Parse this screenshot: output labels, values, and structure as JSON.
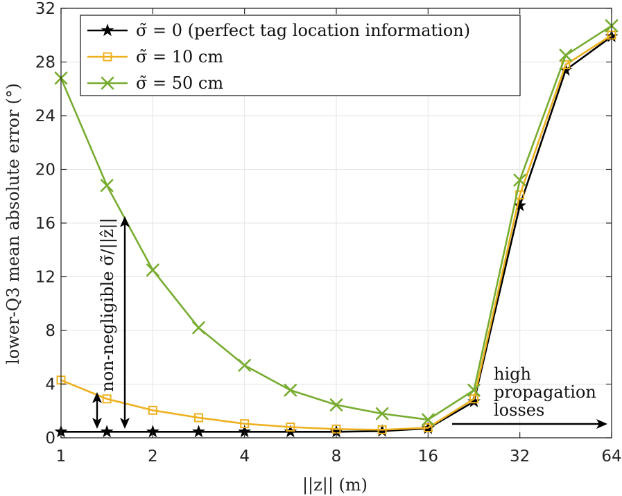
{
  "chart_data": {
    "type": "line",
    "x_scale": "log2",
    "x": [
      1,
      1.414,
      2,
      2.828,
      4,
      5.657,
      8,
      11.31,
      16,
      22.63,
      32,
      45.25,
      64
    ],
    "xticks": [
      1,
      2,
      4,
      8,
      16,
      32,
      64
    ],
    "xtick_labels": [
      "1",
      "2",
      "4",
      "8",
      "16",
      "32",
      "64"
    ],
    "yticks": [
      0,
      4,
      8,
      12,
      16,
      20,
      24,
      28,
      32
    ],
    "ytick_labels": [
      "0",
      "4",
      "8",
      "12",
      "16",
      "20",
      "24",
      "28",
      "32"
    ],
    "xlim": [
      1,
      64
    ],
    "ylim": [
      0,
      32
    ],
    "grid": true,
    "legend_position": "top-left",
    "xlabel": "||z|| (m)",
    "ylabel": "lower-Q3 mean absolute error (°)",
    "series": [
      {
        "name": "σ̃ = 0 (perfect tag location information)",
        "color": "#000000",
        "marker": "star",
        "values": [
          0.45,
          0.45,
          0.45,
          0.45,
          0.45,
          0.45,
          0.45,
          0.5,
          0.7,
          2.7,
          17.3,
          27.4,
          29.9
        ]
      },
      {
        "name": "σ̃ = 10 cm",
        "color": "#EDB120",
        "marker": "square",
        "values": [
          4.3,
          2.9,
          2.05,
          1.5,
          1.05,
          0.8,
          0.65,
          0.6,
          0.75,
          2.9,
          18.1,
          27.8,
          30.0
        ]
      },
      {
        "name": "σ̃ = 50 cm",
        "color": "#77AC30",
        "marker": "x",
        "values": [
          26.8,
          18.8,
          12.5,
          8.2,
          5.4,
          3.55,
          2.45,
          1.8,
          1.35,
          3.55,
          19.2,
          28.5,
          30.7
        ]
      }
    ],
    "annotations": [
      {
        "name": "non-negligible",
        "text": "non-negligible σ̃/||ẑ||"
      },
      {
        "name": "high-propagation",
        "lines": [
          "high",
          "propagation",
          "losses"
        ]
      }
    ]
  }
}
